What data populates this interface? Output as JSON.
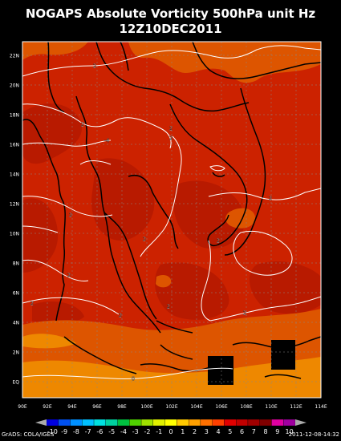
{
  "title_line1": "NOGAPS Absolute Vorticity 500hPa unit Hz",
  "title_line2": "12Z10DEC2011",
  "lat_labels": [
    "22N",
    "20N",
    "18N",
    "16N",
    "14N",
    "12N",
    "10N",
    "8N",
    "6N",
    "4N",
    "2N",
    "EQ"
  ],
  "lon_labels": [
    "90E",
    "92E",
    "94E",
    "96E",
    "98E",
    "100E",
    "102E",
    "104E",
    "106E",
    "108E",
    "110E",
    "112E",
    "114E"
  ],
  "contour_labels": [
    "2",
    "2",
    "2",
    "-4",
    "2",
    "2",
    "2",
    "2",
    "2",
    "2",
    "2",
    "2",
    "2",
    "2",
    "0"
  ],
  "colorbar": {
    "labels": [
      "-10",
      "-9",
      "-8",
      "-7",
      "-6",
      "-5",
      "-4",
      "-3",
      "-2",
      "-1",
      "0",
      "1",
      "2",
      "3",
      "4",
      "5",
      "6",
      "7",
      "8",
      "9",
      "10"
    ],
    "colors": [
      "#0000e0",
      "#0050f0",
      "#0090ff",
      "#00c0ff",
      "#00e0e0",
      "#00d0a0",
      "#00c040",
      "#50d000",
      "#a0e000",
      "#e0f000",
      "#ffff00",
      "#ffc800",
      "#ffa000",
      "#ff7000",
      "#ff4000",
      "#e00000",
      "#c00000",
      "#a00000",
      "#800000",
      "#e000a0",
      "#a000a0"
    ]
  },
  "footer_left": "GrADS: COLA/IGES",
  "footer_right": "2011-12-08-14:32",
  "colors": {
    "bg": "#000000",
    "field_main": "#cc2200",
    "field_deep": "#b81a00",
    "field_orange": "#dd5500",
    "field_lt": "#ee8800",
    "coast": "#000000",
    "contour": "#ffffff"
  }
}
